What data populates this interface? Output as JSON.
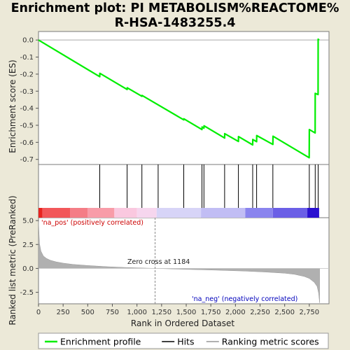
{
  "chart_data": {
    "type": "line",
    "title_line1": "Enrichment plot: PI METABOLISM%REACTOME%",
    "title_line2": "R-HSA-1483255.4",
    "es_ylabel": "Enrichment score (ES)",
    "metric_ylabel": "Ranked list metric (PreRanked)",
    "xlabel": "Rank in Ordered Dataset",
    "xlim": [
      0,
      2950
    ],
    "x_ticks": [
      0,
      250,
      500,
      750,
      1000,
      1250,
      1500,
      1750,
      2000,
      2250,
      2500,
      2750
    ],
    "x_tick_labels": [
      "0",
      "250",
      "500",
      "750",
      "1,000",
      "1,250",
      "1,500",
      "1,750",
      "2,000",
      "2,250",
      "2,500",
      "2,750"
    ],
    "es_ylim": [
      -0.73,
      0.05
    ],
    "es_ticks": [
      0.0,
      -0.1,
      -0.2,
      -0.3,
      -0.4,
      -0.5,
      -0.6,
      -0.7
    ],
    "es_tick_labels": [
      "0.0",
      "-0.1",
      "-0.2",
      "-0.3",
      "-0.4",
      "-0.5",
      "-0.6",
      "-0.7"
    ],
    "metric_ylim": [
      -3.7,
      5.3
    ],
    "metric_ticks": [
      5.0,
      2.5,
      0.0,
      -2.5
    ],
    "metric_tick_labels": [
      "5.0",
      "2.5",
      "0.0",
      "-2.5"
    ],
    "hits": [
      622,
      900,
      1050,
      1215,
      1475,
      1660,
      1680,
      1890,
      2030,
      2175,
      2215,
      2380,
      2750,
      2810,
      2840
    ],
    "enrichment_profile": {
      "x": [
        0,
        622,
        623,
        900,
        901,
        1050,
        1051,
        1475,
        1476,
        1660,
        1661,
        1680,
        1681,
        1890,
        1891,
        2030,
        2031,
        2175,
        2176,
        2215,
        2216,
        2380,
        2381,
        2749,
        2750,
        2809,
        2810,
        2839,
        2840,
        2850
      ],
      "y": [
        0.0,
        -0.215,
        -0.195,
        -0.29,
        -0.28,
        -0.33,
        -0.325,
        -0.468,
        -0.462,
        -0.525,
        -0.51,
        -0.517,
        -0.503,
        -0.575,
        -0.549,
        -0.595,
        -0.566,
        -0.615,
        -0.583,
        -0.596,
        -0.56,
        -0.612,
        -0.564,
        -0.69,
        -0.525,
        -0.545,
        -0.313,
        -0.32,
        0.005,
        0.0
      ]
    },
    "ranking_metric": {
      "x": [
        0,
        10,
        25,
        50,
        80,
        120,
        180,
        250,
        350,
        500,
        700,
        900,
        1184,
        1500,
        1800,
        2100,
        2300,
        2500,
        2600,
        2700,
        2750,
        2800,
        2830,
        2845,
        2855
      ],
      "y": [
        4.9,
        2.6,
        1.8,
        1.3,
        1.05,
        0.85,
        0.68,
        0.55,
        0.42,
        0.3,
        0.18,
        0.09,
        0.0,
        -0.1,
        -0.18,
        -0.28,
        -0.38,
        -0.5,
        -0.62,
        -0.85,
        -1.05,
        -1.45,
        -1.9,
        -2.6,
        -3.6
      ]
    },
    "zero_cross_rank": 1184,
    "zero_cross_label": "Zero cross at 1184",
    "pos_label": "'na_pos' (positively correlated)",
    "neg_label": "'na_neg' (negatively correlated)",
    "heat_bands": [
      {
        "from": 0,
        "to": 40,
        "color": "#e8231f"
      },
      {
        "from": 40,
        "to": 320,
        "color": "#f2575a"
      },
      {
        "from": 320,
        "to": 500,
        "color": "#f47d86"
      },
      {
        "from": 500,
        "to": 770,
        "color": "#f89ca8"
      },
      {
        "from": 770,
        "to": 1000,
        "color": "#fac8df"
      },
      {
        "from": 1000,
        "to": 1200,
        "color": "#f6d6ee"
      },
      {
        "from": 1200,
        "to": 1650,
        "color": "#d7d4f7"
      },
      {
        "from": 1650,
        "to": 2100,
        "color": "#c1bdf4"
      },
      {
        "from": 2100,
        "to": 2380,
        "color": "#8a84ee"
      },
      {
        "from": 2380,
        "to": 2730,
        "color": "#6b5fe6"
      },
      {
        "from": 2730,
        "to": 2850,
        "color": "#2a10d0"
      }
    ],
    "colors": {
      "profile": "#00ee00",
      "hits": "#000000",
      "metric": "#b0b0b0",
      "pos_text": "#cc0000",
      "neg_text": "#0000bb",
      "zero_line": "#888888"
    },
    "legend": [
      {
        "label": "Enrichment profile",
        "kind": "profile"
      },
      {
        "label": "Hits",
        "kind": "hits"
      },
      {
        "label": "Ranking metric scores",
        "kind": "metric"
      }
    ]
  }
}
